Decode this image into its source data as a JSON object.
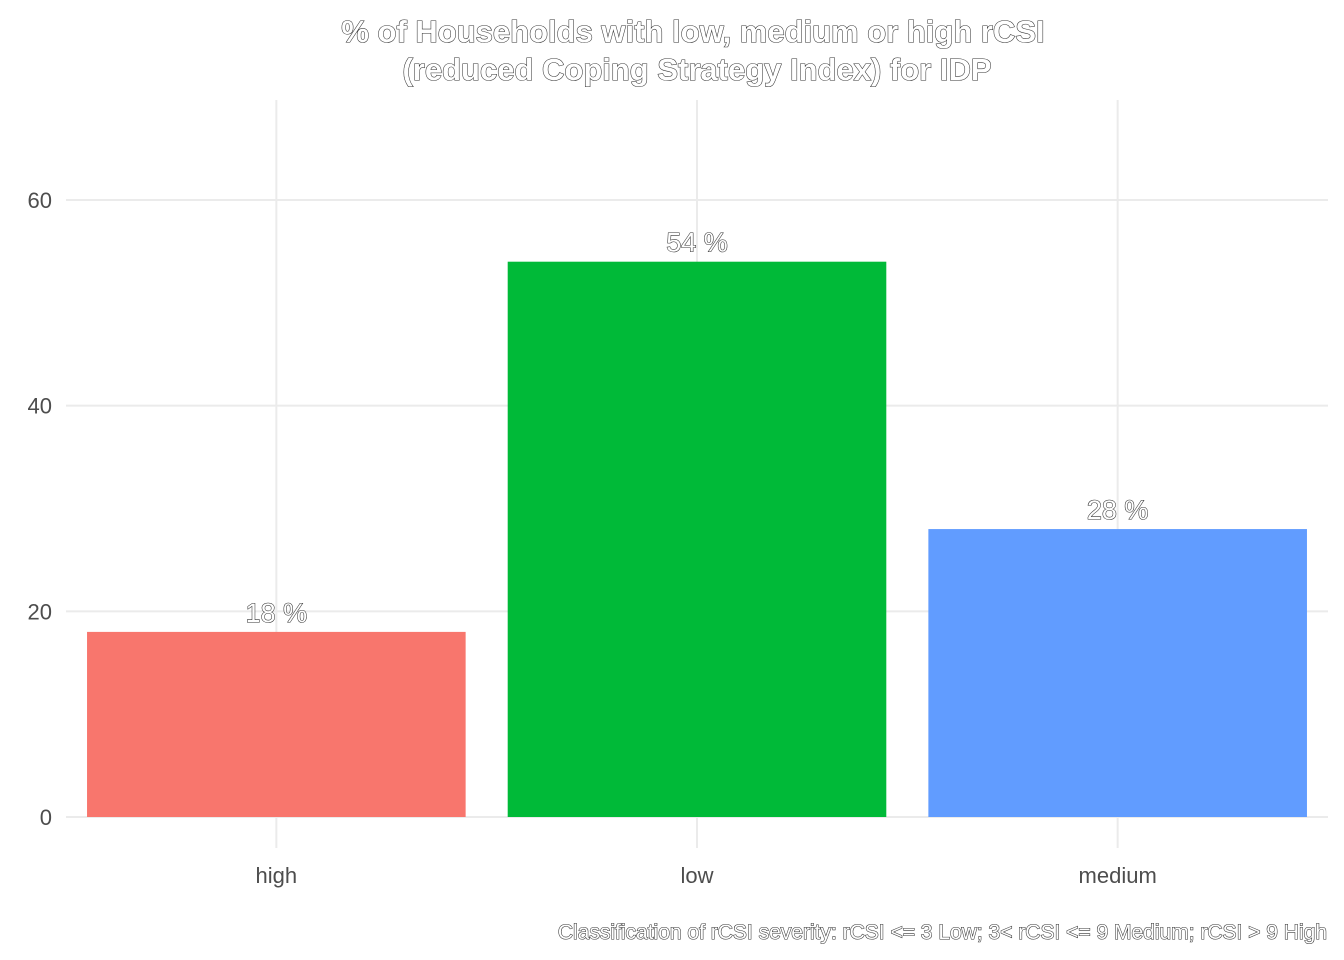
{
  "chart_data": {
    "type": "bar",
    "title": [
      "% of Households with low, medium or high rCSI",
      "(reduced Coping Strategy Index) for IDP"
    ],
    "caption": "Classification of rCSI severity: rCSI <= 3 Low; 3< rCSI <= 9 Medium; rCSI > 9 High",
    "xlabel": "",
    "ylabel": "",
    "categories": [
      "high",
      "low",
      "medium"
    ],
    "values": [
      18,
      54,
      28
    ],
    "data_labels": [
      "18 %",
      "54 %",
      "28 %"
    ],
    "colors": [
      "#F8766D",
      "#00BA38",
      "#619CFF"
    ],
    "ylim": [
      0,
      67
    ],
    "yticks": [
      0,
      20,
      40,
      60
    ],
    "ytick_labels": [
      "0",
      "20",
      "40",
      "60"
    ],
    "grid": true,
    "legend": "none"
  }
}
